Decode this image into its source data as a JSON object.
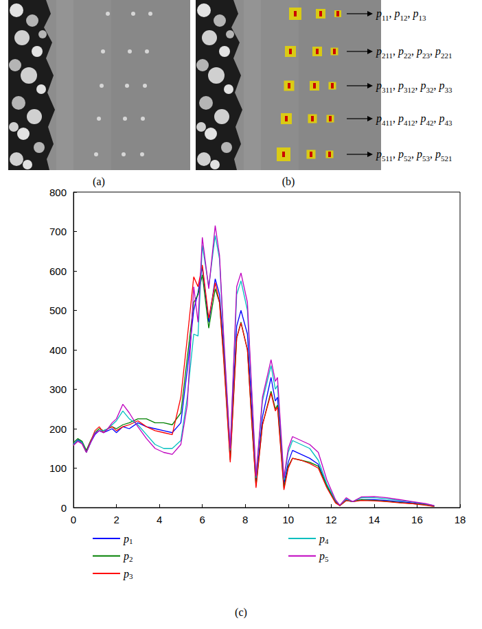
{
  "panels": [
    {
      "caption": "(a)"
    },
    {
      "caption": "(b)",
      "labels": [
        "p11, p12, p13",
        "p211, p22, p23, p221",
        "p311, p312, p32, p33",
        "p411, p412, p42, p43",
        "p511, p52, p53, p521"
      ]
    }
  ],
  "chart_data": {
    "type": "line",
    "caption": "(c)",
    "x": [
      0,
      0.2,
      0.4,
      0.6,
      0.8,
      1.0,
      1.2,
      1.4,
      1.6,
      1.8,
      2.0,
      2.3,
      2.6,
      3.0,
      3.4,
      3.8,
      4.2,
      4.6,
      5.0,
      5.3,
      5.6,
      5.8,
      6.0,
      6.3,
      6.6,
      6.8,
      7.0,
      7.3,
      7.6,
      7.8,
      8.1,
      8.3,
      8.5,
      8.8,
      9.2,
      9.4,
      9.5,
      9.8,
      10.0,
      10.2,
      10.6,
      11.0,
      11.4,
      11.8,
      12.2,
      12.4,
      12.7,
      13.0,
      13.4,
      14.0,
      14.6,
      15.2,
      15.8,
      16.4,
      16.8
    ],
    "series": [
      {
        "name": "p1",
        "color": "#0000ff",
        "values": [
          160,
          172,
          165,
          140,
          165,
          185,
          195,
          190,
          195,
          200,
          190,
          205,
          200,
          215,
          205,
          200,
          195,
          190,
          215,
          350,
          500,
          545,
          610,
          470,
          580,
          540,
          400,
          135,
          460,
          500,
          440,
          250,
          60,
          230,
          330,
          270,
          280,
          60,
          115,
          145,
          135,
          125,
          110,
          55,
          15,
          5,
          20,
          15,
          20,
          20,
          18,
          15,
          12,
          8,
          4
        ]
      },
      {
        "name": "p2",
        "color": "#008000",
        "values": [
          165,
          175,
          168,
          145,
          170,
          190,
          200,
          195,
          200,
          205,
          200,
          210,
          215,
          225,
          225,
          215,
          215,
          210,
          240,
          380,
          520,
          540,
          590,
          455,
          555,
          520,
          380,
          120,
          430,
          470,
          400,
          220,
          55,
          210,
          295,
          250,
          260,
          50,
          105,
          125,
          120,
          115,
          105,
          55,
          15,
          5,
          18,
          15,
          20,
          18,
          16,
          13,
          10,
          7,
          3
        ]
      },
      {
        "name": "p3",
        "color": "#ff0000",
        "values": [
          158,
          170,
          162,
          140,
          168,
          195,
          205,
          190,
          200,
          205,
          195,
          205,
          210,
          220,
          205,
          195,
          190,
          185,
          280,
          430,
          585,
          560,
          615,
          480,
          570,
          520,
          370,
          115,
          430,
          468,
          400,
          220,
          50,
          210,
          290,
          245,
          255,
          45,
          100,
          125,
          120,
          112,
          100,
          50,
          12,
          5,
          18,
          15,
          18,
          17,
          15,
          12,
          10,
          6,
          3
        ]
      },
      {
        "name": "p4",
        "color": "#00bfbf",
        "values": [
          160,
          170,
          165,
          140,
          165,
          190,
          195,
          195,
          200,
          210,
          220,
          245,
          225,
          210,
          185,
          160,
          150,
          150,
          170,
          280,
          440,
          435,
          665,
          560,
          690,
          630,
          420,
          145,
          540,
          575,
          500,
          290,
          75,
          270,
          360,
          300,
          310,
          70,
          140,
          170,
          160,
          150,
          120,
          60,
          18,
          6,
          22,
          15,
          25,
          25,
          22,
          18,
          14,
          9,
          5
        ]
      },
      {
        "name": "p5",
        "color": "#bf00bf",
        "values": [
          158,
          168,
          162,
          140,
          165,
          188,
          195,
          190,
          200,
          215,
          225,
          262,
          240,
          205,
          175,
          150,
          140,
          135,
          160,
          260,
          560,
          470,
          685,
          555,
          715,
          640,
          430,
          150,
          560,
          595,
          520,
          300,
          80,
          280,
          375,
          320,
          330,
          75,
          150,
          180,
          170,
          160,
          140,
          70,
          20,
          6,
          25,
          15,
          27,
          28,
          25,
          20,
          15,
          10,
          5
        ]
      }
    ],
    "xlim": [
      0,
      18
    ],
    "xticks": [
      0,
      2,
      4,
      6,
      8,
      10,
      12,
      14,
      16,
      18
    ],
    "ylim": [
      0,
      800
    ],
    "yticks": [
      0,
      100,
      200,
      300,
      400,
      500,
      600,
      700,
      800
    ],
    "grid": false,
    "legend": "bottom"
  }
}
